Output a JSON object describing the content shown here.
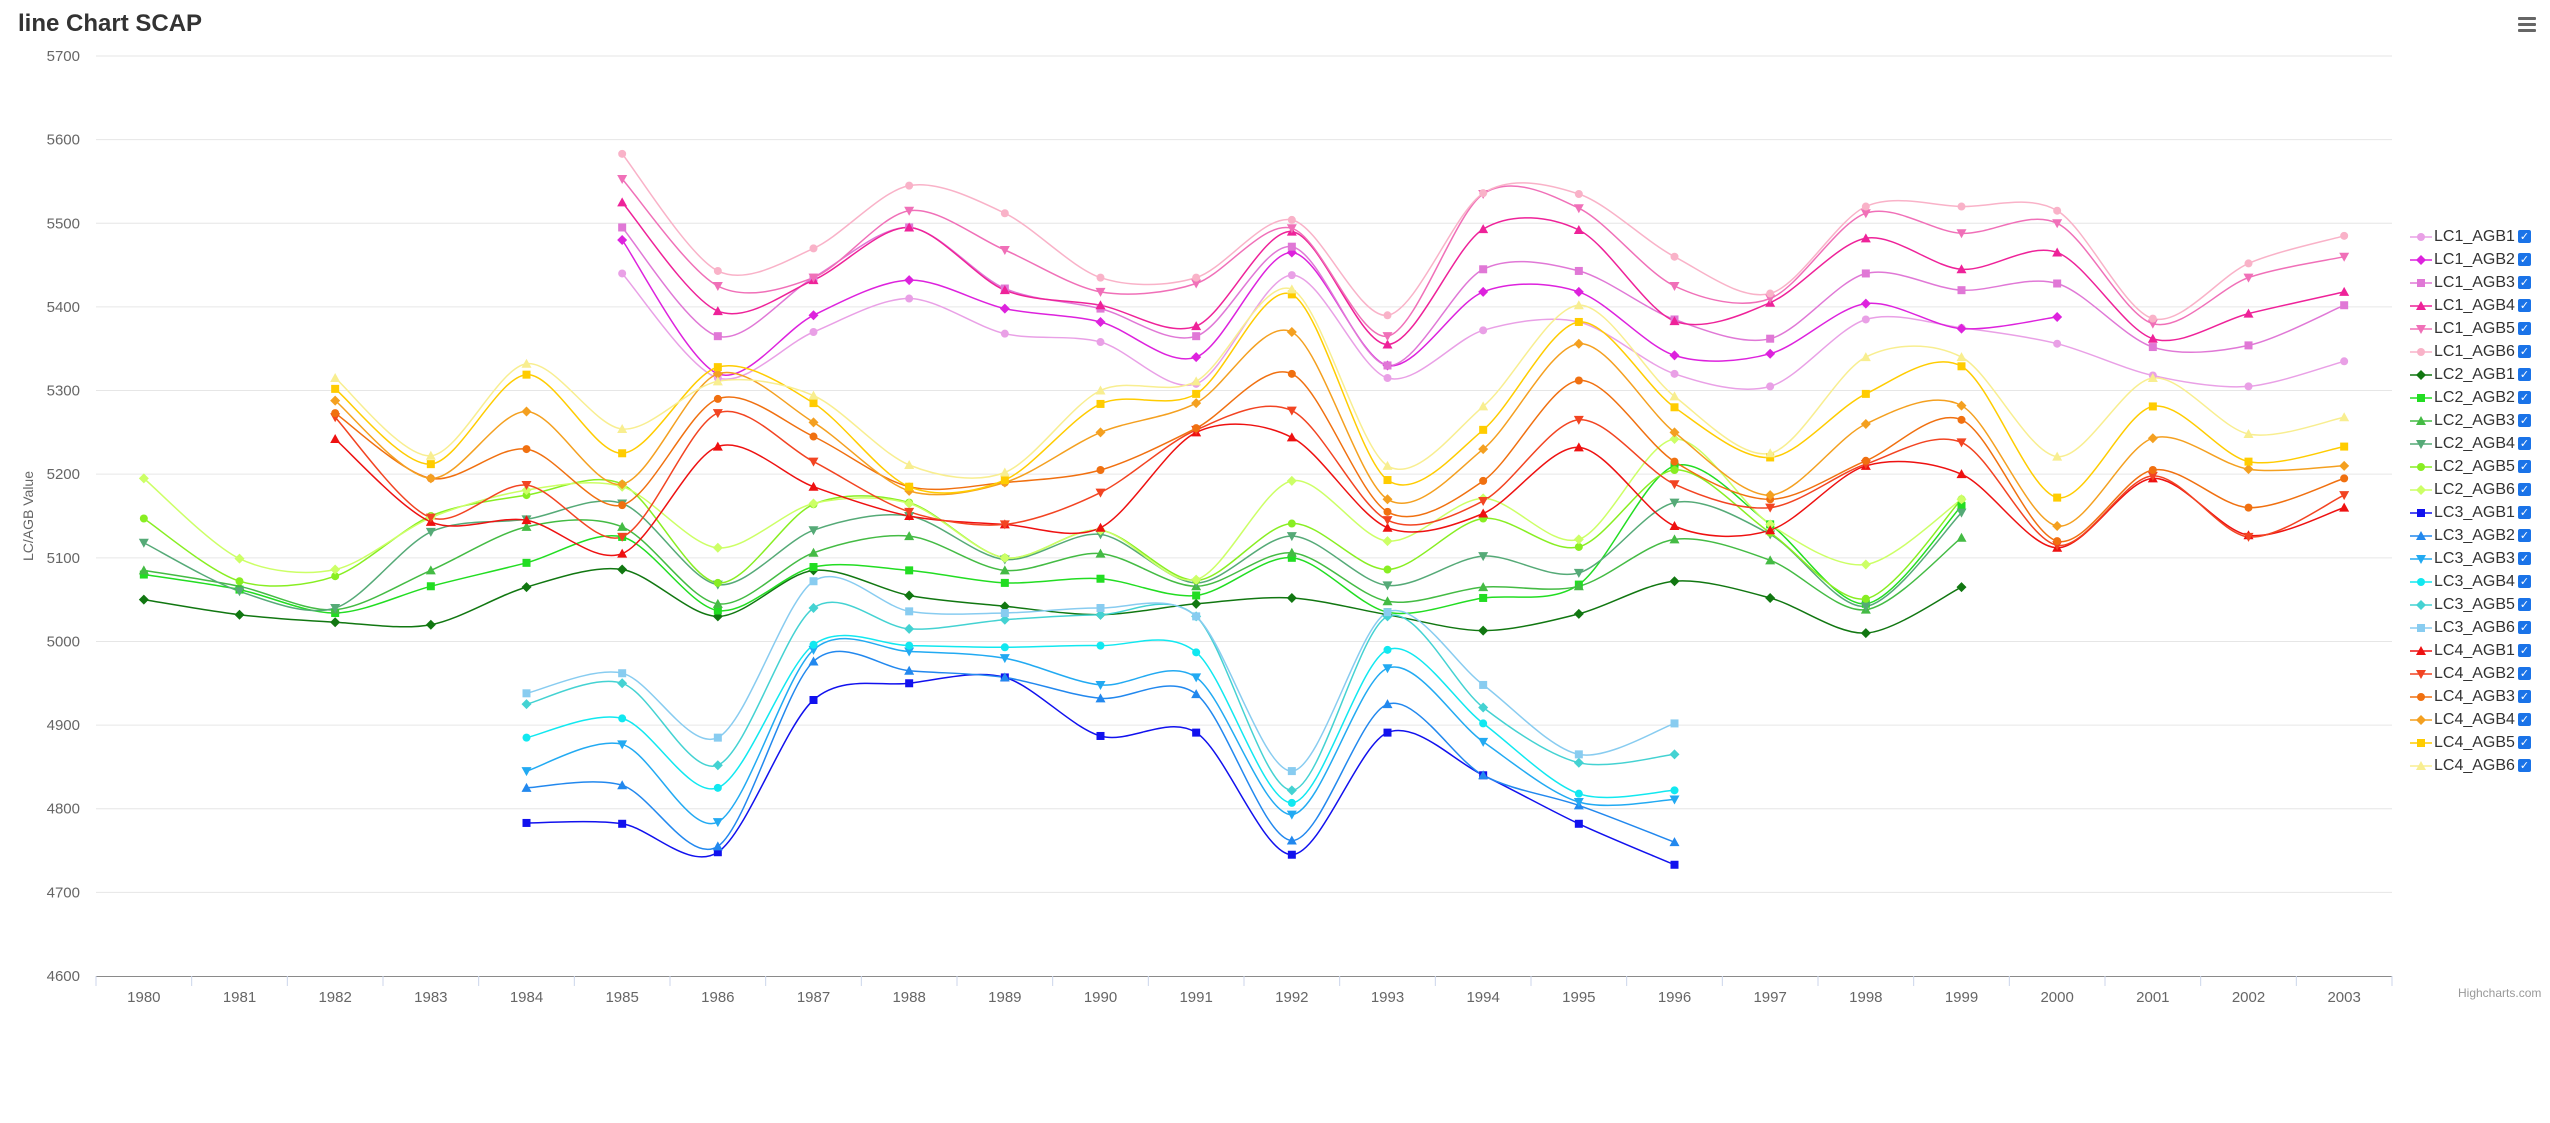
{
  "chart_data": {
    "type": "line",
    "title": "line Chart SCAP",
    "ylabel": "LC/AGB Value",
    "xlabel": "",
    "ylim": [
      4600,
      5700
    ],
    "yticks": [
      4600,
      4700,
      4800,
      4900,
      5000,
      5100,
      5200,
      5300,
      5400,
      5500,
      5600,
      5700
    ],
    "categories": [
      "1980",
      "1981",
      "1982",
      "1983",
      "1984",
      "1985",
      "1986",
      "1987",
      "1988",
      "1989",
      "1990",
      "1991",
      "1992",
      "1993",
      "1994",
      "1995",
      "1996",
      "1997",
      "1998",
      "1999",
      "2000",
      "2001",
      "2002",
      "2003"
    ],
    "legend_position": "right",
    "grid": true,
    "series": [
      {
        "name": "LC1_AGB1",
        "color": "#e9a0e6",
        "marker": "circle",
        "values": [
          null,
          null,
          null,
          null,
          null,
          5440,
          5315,
          5370,
          5410,
          5368,
          5358,
          5308,
          5438,
          5315,
          5372,
          5382,
          5320,
          5305,
          5385,
          5375,
          5356,
          5318,
          5305,
          5335
        ]
      },
      {
        "name": "LC1_AGB2",
        "color": "#dd22dd",
        "marker": "diamond",
        "values": [
          null,
          null,
          null,
          null,
          null,
          5480,
          5320,
          5390,
          5432,
          5398,
          5382,
          5340,
          5465,
          5330,
          5418,
          5418,
          5342,
          5344,
          5404,
          5374,
          5388,
          null,
          null,
          null
        ]
      },
      {
        "name": "LC1_AGB3",
        "color": "#e078d6",
        "marker": "square",
        "values": [
          null,
          null,
          null,
          null,
          null,
          5495,
          5365,
          5435,
          5495,
          5422,
          5398,
          5365,
          5472,
          5330,
          5445,
          5443,
          5385,
          5362,
          5440,
          5420,
          5428,
          5352,
          5354,
          5402
        ]
      },
      {
        "name": "LC1_AGB4",
        "color": "#ee2299",
        "marker": "triangle",
        "values": [
          null,
          null,
          null,
          null,
          null,
          5525,
          5395,
          5432,
          5495,
          5420,
          5402,
          5377,
          5490,
          5355,
          5493,
          5492,
          5383,
          5405,
          5482,
          5445,
          5465,
          5362,
          5392,
          5418
        ]
      },
      {
        "name": "LC1_AGB5",
        "color": "#f070b8",
        "marker": "triangle-down",
        "values": [
          null,
          null,
          null,
          null,
          null,
          5553,
          5425,
          5435,
          5515,
          5468,
          5418,
          5428,
          5494,
          5365,
          5535,
          5518,
          5425,
          5410,
          5512,
          5488,
          5500,
          5380,
          5435,
          5460
        ]
      },
      {
        "name": "LC1_AGB6",
        "color": "#f9b2c8",
        "marker": "circle",
        "values": [
          null,
          null,
          null,
          null,
          null,
          5583,
          5443,
          5470,
          5545,
          5512,
          5435,
          5435,
          5504,
          5390,
          5536,
          5535,
          5460,
          5416,
          5520,
          5520,
          5515,
          5386,
          5452,
          5485
        ]
      },
      {
        "name": "LC2_AGB1",
        "color": "#117711",
        "marker": "diamond",
        "values": [
          5050,
          5032,
          5023,
          5020,
          5065,
          5086,
          5030,
          5085,
          5055,
          5042,
          5032,
          5045,
          5052,
          5032,
          5013,
          5033,
          5072,
          5052,
          5010,
          5065,
          null,
          null,
          null,
          null
        ]
      },
      {
        "name": "LC2_AGB2",
        "color": "#22dd22",
        "marker": "square",
        "values": [
          5080,
          5062,
          5034,
          5066,
          5094,
          5125,
          5037,
          5089,
          5085,
          5070,
          5075,
          5055,
          5100,
          5035,
          5052,
          5068,
          5210,
          5140,
          5045,
          5162,
          null,
          null,
          null,
          null
        ]
      },
      {
        "name": "LC2_AGB3",
        "color": "#44bb44",
        "marker": "triangle",
        "values": [
          5085,
          5066,
          5038,
          5085,
          5137,
          5137,
          5045,
          5106,
          5126,
          5085,
          5105,
          5066,
          5106,
          5048,
          5065,
          5066,
          5122,
          5097,
          5038,
          5124,
          null,
          null,
          null,
          null
        ]
      },
      {
        "name": "LC2_AGB4",
        "color": "#55aa77",
        "marker": "triangle-down",
        "values": [
          5118,
          5060,
          5040,
          5131,
          5146,
          5165,
          5068,
          5133,
          5150,
          5098,
          5128,
          5070,
          5126,
          5067,
          5102,
          5082,
          5166,
          5128,
          5042,
          5154,
          null,
          null,
          null,
          null
        ]
      },
      {
        "name": "LC2_AGB5",
        "color": "#88ee22",
        "marker": "circle",
        "values": [
          5147,
          5072,
          5078,
          5150,
          5175,
          5188,
          5070,
          5164,
          5166,
          5100,
          5133,
          5073,
          5141,
          5086,
          5147,
          5113,
          5205,
          5130,
          5051,
          5170,
          null,
          null,
          null,
          null
        ]
      },
      {
        "name": "LC2_AGB6",
        "color": "#ccff66",
        "marker": "diamond",
        "values": [
          5195,
          5099,
          5086,
          5148,
          5181,
          5185,
          5112,
          5165,
          5165,
          5100,
          5133,
          5074,
          5192,
          5120,
          5171,
          5122,
          5242,
          5140,
          5092,
          5170,
          null,
          null,
          null,
          null
        ]
      },
      {
        "name": "LC3_AGB1",
        "color": "#1111ee",
        "marker": "square",
        "values": [
          null,
          null,
          null,
          null,
          4783,
          4782,
          4748,
          4930,
          4950,
          4957,
          4887,
          4891,
          4745,
          4891,
          4840,
          4782,
          4733,
          null,
          null,
          null,
          null,
          null,
          null,
          null
        ]
      },
      {
        "name": "LC3_AGB2",
        "color": "#2288ee",
        "marker": "triangle",
        "values": [
          null,
          null,
          null,
          null,
          4825,
          4828,
          4755,
          4976,
          4965,
          4957,
          4932,
          4937,
          4762,
          4925,
          4840,
          4804,
          4760,
          null,
          null,
          null,
          null,
          null,
          null,
          null
        ]
      },
      {
        "name": "LC3_AGB3",
        "color": "#22aaf2",
        "marker": "triangle-down",
        "values": [
          null,
          null,
          null,
          null,
          4845,
          4877,
          4784,
          4990,
          4988,
          4980,
          4948,
          4957,
          4793,
          4968,
          4880,
          4808,
          4811,
          null,
          null,
          null,
          null,
          null,
          null,
          null
        ]
      },
      {
        "name": "LC3_AGB4",
        "color": "#11e8f0",
        "marker": "circle",
        "values": [
          null,
          null,
          null,
          null,
          4885,
          4908,
          4825,
          4996,
          4995,
          4993,
          4995,
          4987,
          4807,
          4990,
          4902,
          4818,
          4822,
          null,
          null,
          null,
          null,
          null,
          null,
          null
        ]
      },
      {
        "name": "LC3_AGB5",
        "color": "#44d2d2",
        "marker": "diamond",
        "values": [
          null,
          null,
          null,
          null,
          4925,
          4950,
          4852,
          5040,
          5015,
          5026,
          5032,
          5030,
          4822,
          5030,
          4921,
          4855,
          4865,
          null,
          null,
          null,
          null,
          null,
          null,
          null
        ]
      },
      {
        "name": "LC3_AGB6",
        "color": "#88ccf0",
        "marker": "square",
        "values": [
          null,
          null,
          null,
          null,
          4938,
          4962,
          4885,
          5072,
          5036,
          5034,
          5040,
          5030,
          4845,
          5035,
          4948,
          4865,
          4902,
          null,
          null,
          null,
          null,
          null,
          null,
          null
        ]
      },
      {
        "name": "LC4_AGB1",
        "color": "#ee1111",
        "marker": "triangle",
        "values": [
          null,
          null,
          5242,
          5143,
          5145,
          5105,
          5233,
          5185,
          5150,
          5140,
          5136,
          5250,
          5244,
          5136,
          5153,
          5232,
          5138,
          5133,
          5210,
          5200,
          5112,
          5195,
          5127,
          5160
        ]
      },
      {
        "name": "LC4_AGB2",
        "color": "#f24422",
        "marker": "triangle-down",
        "values": [
          null,
          null,
          5268,
          5148,
          5187,
          5125,
          5273,
          5215,
          5155,
          5140,
          5178,
          5253,
          5276,
          5145,
          5168,
          5265,
          5188,
          5160,
          5212,
          5238,
          5115,
          5198,
          5125,
          5175
        ]
      },
      {
        "name": "LC4_AGB3",
        "color": "#f07010",
        "marker": "circle",
        "values": [
          null,
          null,
          5273,
          5195,
          5230,
          5163,
          5290,
          5245,
          5185,
          5190,
          5205,
          5255,
          5320,
          5155,
          5192,
          5312,
          5215,
          5170,
          5216,
          5265,
          5120,
          5205,
          5160,
          5195
        ]
      },
      {
        "name": "LC4_AGB4",
        "color": "#f4a020",
        "marker": "diamond",
        "values": [
          null,
          null,
          5288,
          5195,
          5275,
          5188,
          5320,
          5262,
          5180,
          5190,
          5250,
          5285,
          5370,
          5170,
          5230,
          5356,
          5250,
          5175,
          5260,
          5282,
          5138,
          5243,
          5206,
          5210
        ]
      },
      {
        "name": "LC4_AGB5",
        "color": "#ffcc00",
        "marker": "square",
        "values": [
          null,
          null,
          5302,
          5212,
          5319,
          5225,
          5328,
          5285,
          5185,
          5193,
          5284,
          5296,
          5415,
          5193,
          5253,
          5382,
          5280,
          5220,
          5296,
          5329,
          5172,
          5281,
          5215,
          5233
        ]
      },
      {
        "name": "LC4_AGB6",
        "color": "#f8ee90",
        "marker": "triangle",
        "values": [
          null,
          null,
          5315,
          5222,
          5332,
          5254,
          5311,
          5294,
          5211,
          5202,
          5300,
          5311,
          5421,
          5210,
          5281,
          5402,
          5293,
          5225,
          5340,
          5340,
          5221,
          5315,
          5248,
          5268
        ]
      }
    ]
  },
  "credits": "Highcharts.com"
}
